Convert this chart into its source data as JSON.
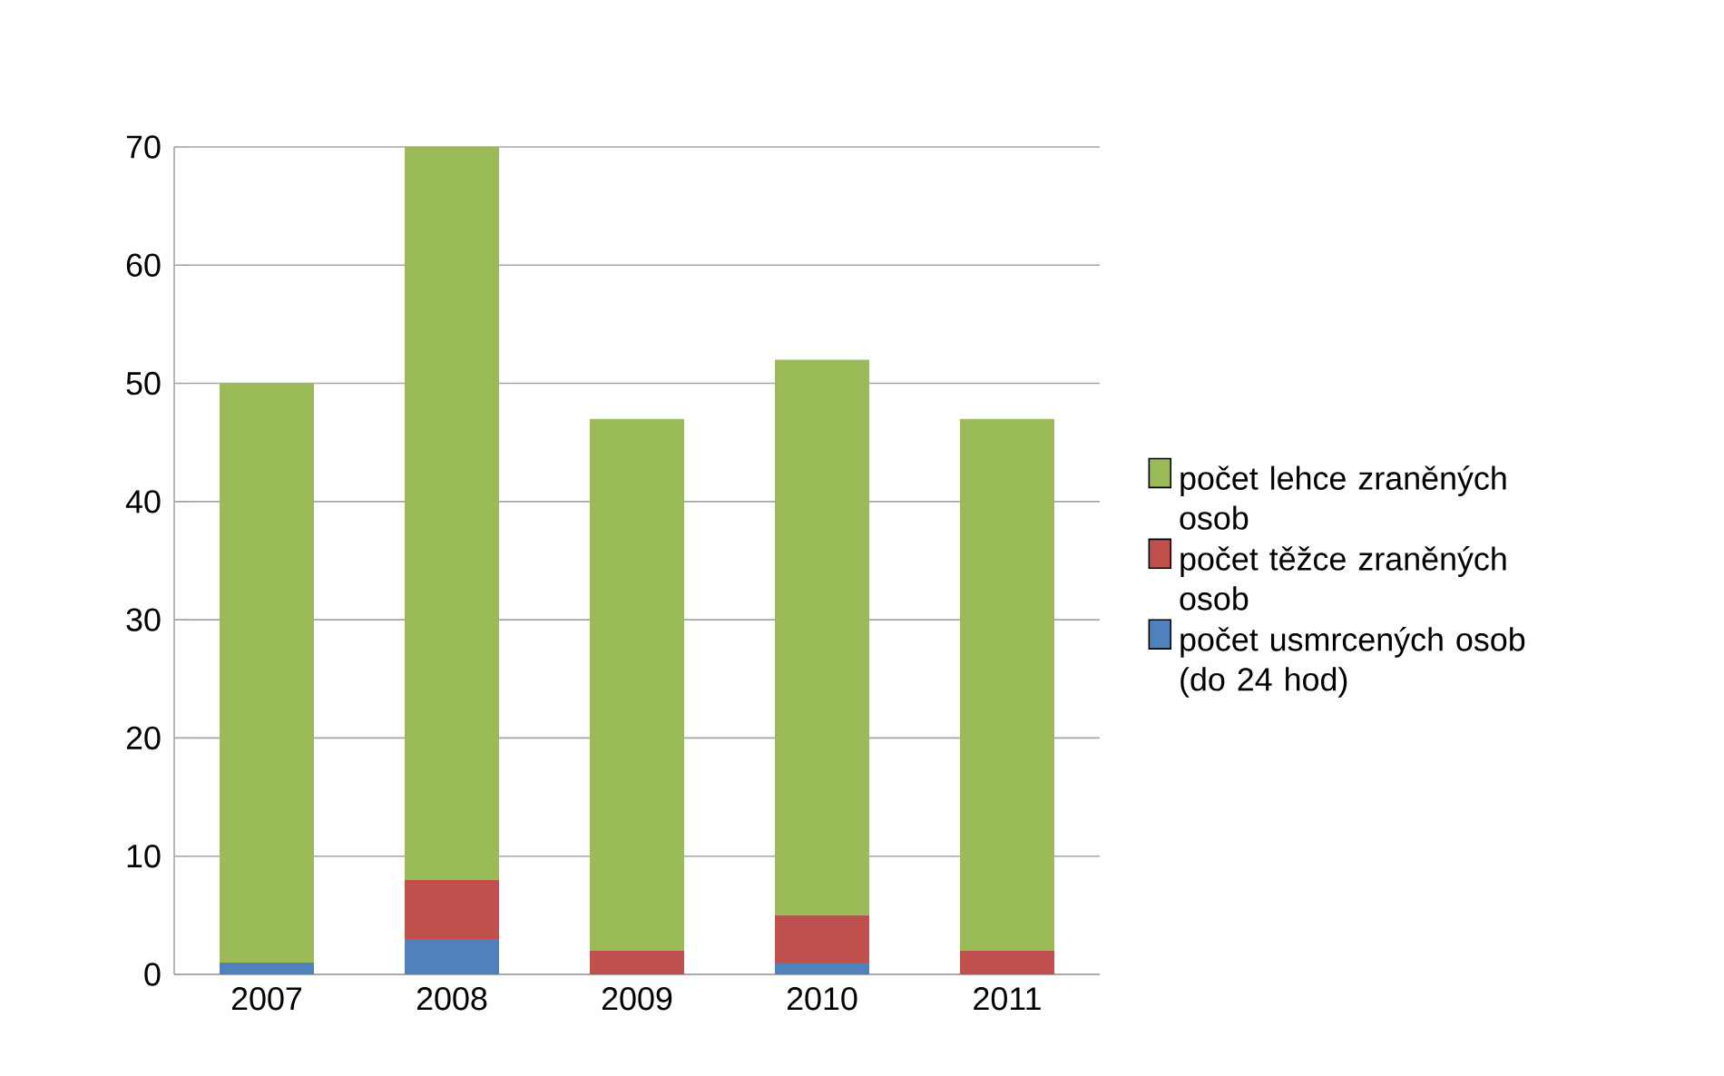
{
  "chart_data": {
    "type": "bar",
    "stacked": true,
    "categories": [
      "2007",
      "2008",
      "2009",
      "2010",
      "2011"
    ],
    "series": [
      {
        "name": "počet usmrcených osob (do 24 hod)",
        "color": "#4f81bd",
        "values": [
          1,
          3,
          0,
          1,
          0
        ]
      },
      {
        "name": "počet těžce zraněných osob",
        "color": "#c0504d",
        "values": [
          0,
          5,
          2,
          4,
          2
        ]
      },
      {
        "name": "počet lehce zraněných osob",
        "color": "#9bbb59",
        "values": [
          49,
          62,
          45,
          47,
          45
        ]
      }
    ],
    "ylim": [
      0,
      70
    ],
    "yticks": [
      0,
      10,
      20,
      30,
      40,
      50,
      60,
      70
    ],
    "grid": "y",
    "legend": "right"
  }
}
